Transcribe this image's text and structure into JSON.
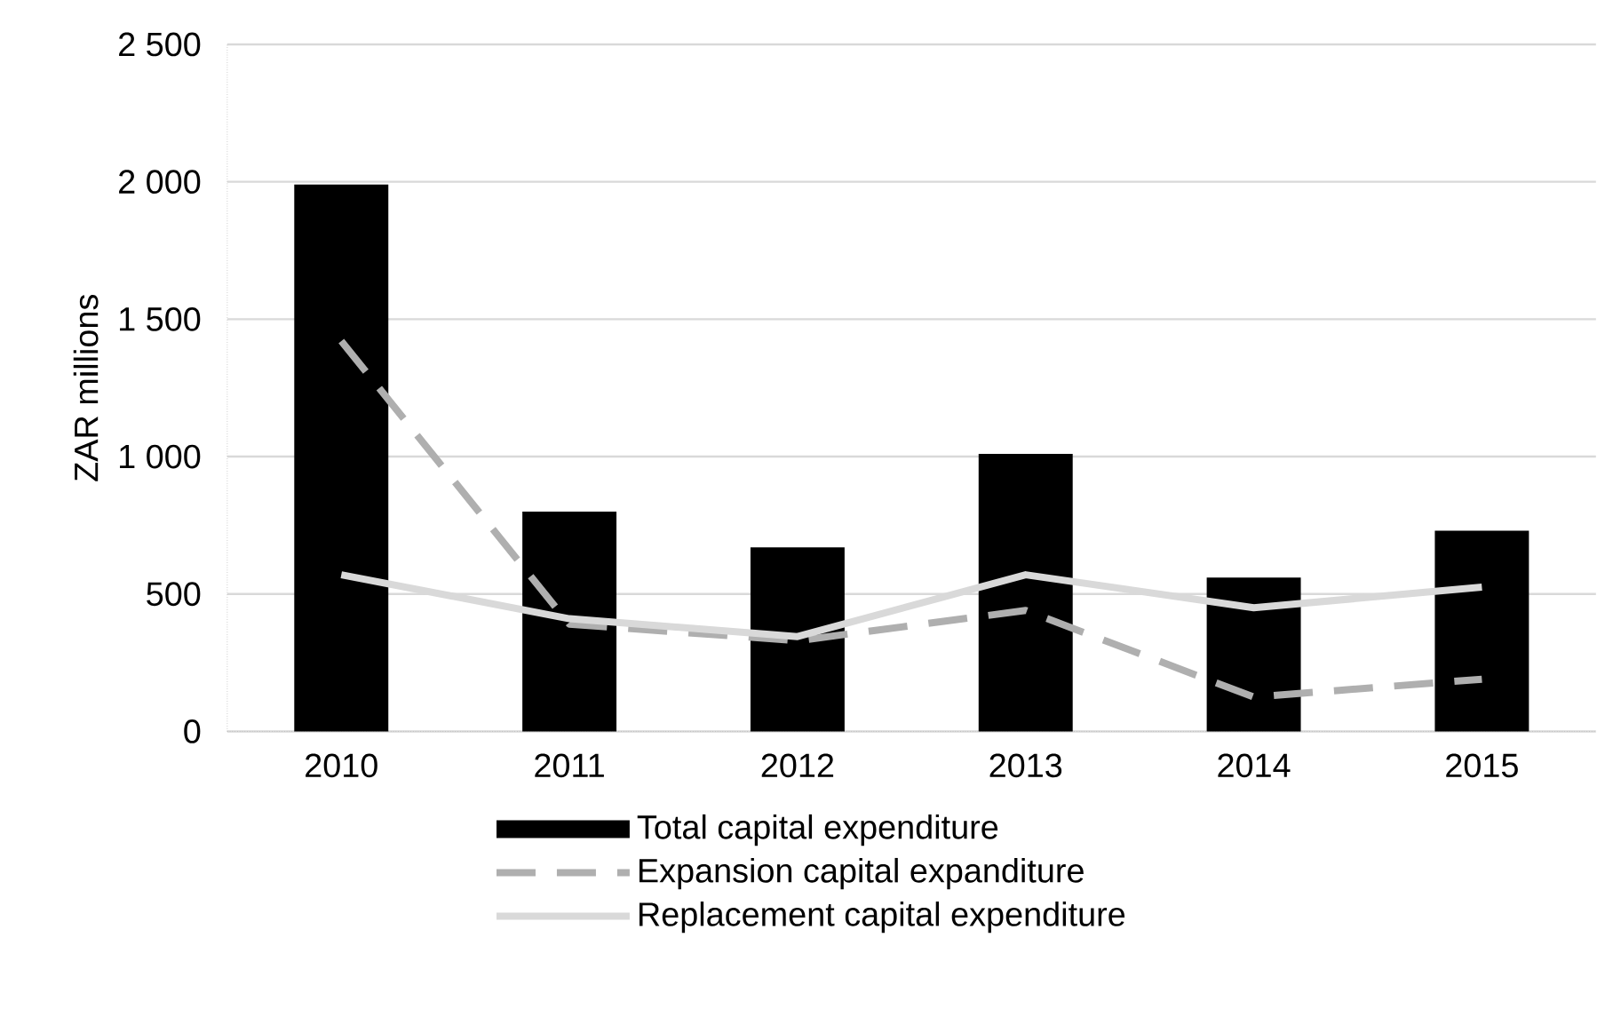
{
  "chart_data": {
    "type": "bar",
    "ylabel": "ZAR millions",
    "categories": [
      "2010",
      "2011",
      "2012",
      "2013",
      "2014",
      "2015"
    ],
    "series": [
      {
        "name": "Total capital expenditure",
        "color": "#000000",
        "values": [
          1990,
          800,
          670,
          1010,
          560,
          730
        ]
      },
      {
        "name": "Expansion capital expanditure",
        "type": "line",
        "line_style": "dashed",
        "color": "#afafaf",
        "values": [
          1420,
          390,
          330,
          440,
          125,
          190
        ]
      },
      {
        "name": "Replacement capital expenditure",
        "type": "line",
        "line_style": "solid",
        "color": "#d9d9d9",
        "values": [
          570,
          410,
          345,
          570,
          450,
          525
        ]
      }
    ],
    "ylim": [
      0,
      2500
    ],
    "yticks": [
      0,
      500,
      {
        "value": 1000,
        "label": "1 000"
      },
      {
        "value": 1500,
        "label": "1 500"
      },
      {
        "value": 2000,
        "label": "2 000"
      },
      {
        "value": 2500,
        "label": "2 500"
      }
    ],
    "grid": "y",
    "legend": "bottom"
  }
}
